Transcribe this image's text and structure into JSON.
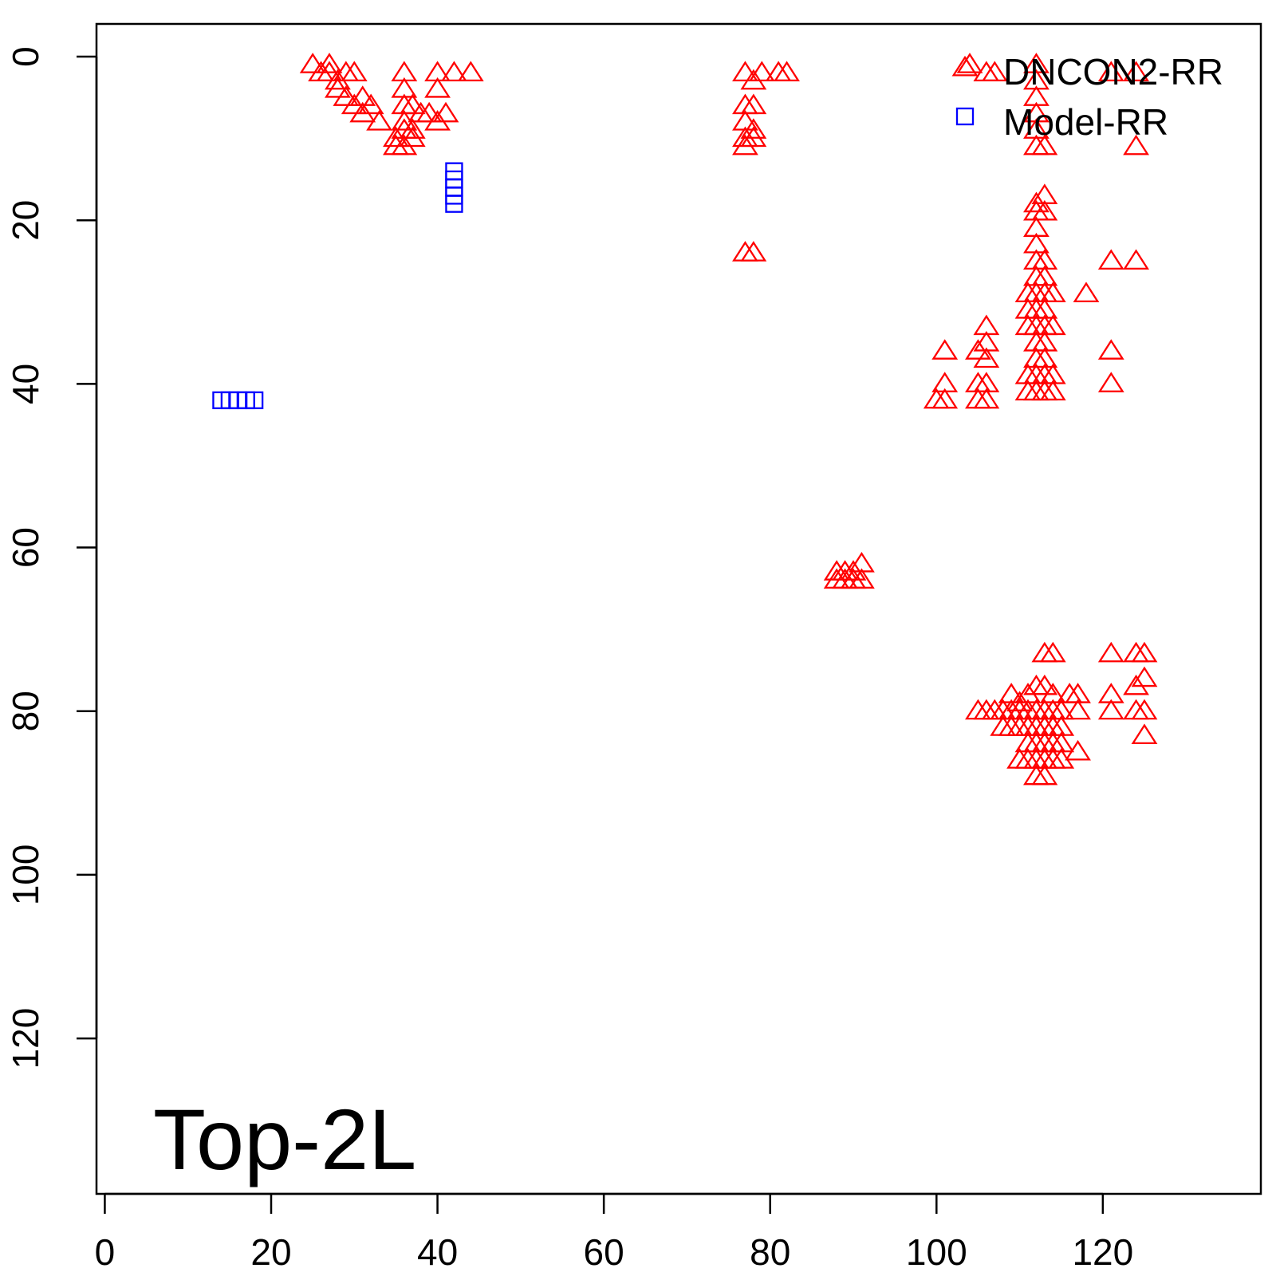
{
  "chart_data": {
    "type": "scatter",
    "title": "",
    "xlabel": "",
    "ylabel": "",
    "panel_label": "Top-2L",
    "xlim": [
      -1,
      139
    ],
    "ylim": [
      139,
      -4
    ],
    "y_reversed": true,
    "x_ticks": [
      "0",
      "20",
      "40",
      "60",
      "80",
      "100",
      "120"
    ],
    "y_ticks": [
      "0",
      "20",
      "40",
      "60",
      "80",
      "100",
      "120"
    ],
    "grid": false,
    "legend_position": "top-right",
    "legend": [
      "DNCON2-RR",
      "Model-RR"
    ],
    "series": [
      {
        "name": "DNCON2-RR",
        "color": "#ff0000",
        "marker": "triangle",
        "points": [
          [
            25,
            1
          ],
          [
            26,
            2
          ],
          [
            27,
            1
          ],
          [
            27,
            2
          ],
          [
            28,
            3
          ],
          [
            29,
            2
          ],
          [
            30,
            2
          ],
          [
            28,
            4
          ],
          [
            29,
            5
          ],
          [
            30,
            6
          ],
          [
            31,
            5
          ],
          [
            31,
            7
          ],
          [
            32,
            6
          ],
          [
            33,
            8
          ],
          [
            36,
            2
          ],
          [
            36,
            4
          ],
          [
            36,
            6
          ],
          [
            36,
            8
          ],
          [
            36,
            9
          ],
          [
            35,
            10
          ],
          [
            37,
            10
          ],
          [
            35,
            11
          ],
          [
            36,
            11
          ],
          [
            37,
            9
          ],
          [
            37,
            6
          ],
          [
            38,
            7
          ],
          [
            39,
            7
          ],
          [
            40,
            8
          ],
          [
            41,
            7
          ],
          [
            40,
            4
          ],
          [
            40,
            2
          ],
          [
            42,
            2
          ],
          [
            44,
            2
          ],
          [
            77,
            2
          ],
          [
            79,
            2
          ],
          [
            81,
            2
          ],
          [
            82,
            2
          ],
          [
            78,
            3
          ],
          [
            77,
            6
          ],
          [
            78,
            6
          ],
          [
            77,
            8
          ],
          [
            78,
            9
          ],
          [
            77,
            10
          ],
          [
            78,
            10
          ],
          [
            77,
            11
          ],
          [
            77,
            24
          ],
          [
            78,
            24
          ],
          [
            104,
            1
          ],
          [
            106,
            2
          ],
          [
            107,
            2
          ],
          [
            112,
            1
          ],
          [
            112,
            3
          ],
          [
            112,
            5
          ],
          [
            112,
            7
          ],
          [
            112,
            9
          ],
          [
            112,
            11
          ],
          [
            113,
            11
          ],
          [
            124,
            11
          ],
          [
            121,
            2
          ],
          [
            124,
            2
          ],
          [
            112,
            18
          ],
          [
            113,
            17
          ],
          [
            112,
            19
          ],
          [
            113,
            19
          ],
          [
            112,
            21
          ],
          [
            112,
            23
          ],
          [
            112,
            25
          ],
          [
            113,
            25
          ],
          [
            112,
            27
          ],
          [
            113,
            27
          ],
          [
            111,
            29
          ],
          [
            112,
            29
          ],
          [
            113,
            29
          ],
          [
            114,
            29
          ],
          [
            111,
            31
          ],
          [
            112,
            31
          ],
          [
            113,
            31
          ],
          [
            111,
            33
          ],
          [
            112,
            33
          ],
          [
            113,
            33
          ],
          [
            114,
            33
          ],
          [
            112,
            35
          ],
          [
            113,
            35
          ],
          [
            112,
            37
          ],
          [
            113,
            37
          ],
          [
            111,
            39
          ],
          [
            112,
            39
          ],
          [
            113,
            39
          ],
          [
            114,
            39
          ],
          [
            111,
            41
          ],
          [
            112,
            41
          ],
          [
            113,
            41
          ],
          [
            114,
            41
          ],
          [
            121,
            25
          ],
          [
            124,
            25
          ],
          [
            118,
            29
          ],
          [
            121,
            36
          ],
          [
            121,
            40
          ],
          [
            101,
            36
          ],
          [
            105,
            36
          ],
          [
            106,
            33
          ],
          [
            106,
            35
          ],
          [
            106,
            37
          ],
          [
            100,
            42
          ],
          [
            101,
            40
          ],
          [
            101,
            42
          ],
          [
            105,
            40
          ],
          [
            105,
            42
          ],
          [
            106,
            40
          ],
          [
            106,
            42
          ],
          [
            88,
            63
          ],
          [
            89,
            63
          ],
          [
            90,
            63
          ],
          [
            91,
            62
          ],
          [
            88,
            64
          ],
          [
            89,
            64
          ],
          [
            90,
            64
          ],
          [
            91,
            64
          ],
          [
            113,
            73
          ],
          [
            114,
            73
          ],
          [
            121,
            73
          ],
          [
            124,
            73
          ],
          [
            125,
            73
          ],
          [
            109,
            78
          ],
          [
            110,
            79
          ],
          [
            111,
            78
          ],
          [
            112,
            77
          ],
          [
            113,
            77
          ],
          [
            114,
            78
          ],
          [
            116,
            78
          ],
          [
            117,
            78
          ],
          [
            121,
            78
          ],
          [
            124,
            77
          ],
          [
            125,
            76
          ],
          [
            105,
            80
          ],
          [
            106,
            80
          ],
          [
            107,
            80
          ],
          [
            108,
            80
          ],
          [
            109,
            80
          ],
          [
            110,
            80
          ],
          [
            111,
            80
          ],
          [
            112,
            80
          ],
          [
            113,
            80
          ],
          [
            114,
            80
          ],
          [
            115,
            80
          ],
          [
            117,
            80
          ],
          [
            121,
            80
          ],
          [
            124,
            80
          ],
          [
            125,
            80
          ],
          [
            108,
            82
          ],
          [
            109,
            82
          ],
          [
            110,
            82
          ],
          [
            111,
            82
          ],
          [
            112,
            82
          ],
          [
            113,
            82
          ],
          [
            114,
            82
          ],
          [
            115,
            82
          ],
          [
            111,
            84
          ],
          [
            112,
            84
          ],
          [
            113,
            84
          ],
          [
            114,
            84
          ],
          [
            115,
            84
          ],
          [
            117,
            85
          ],
          [
            110,
            86
          ],
          [
            111,
            86
          ],
          [
            112,
            86
          ],
          [
            113,
            86
          ],
          [
            114,
            86
          ],
          [
            115,
            86
          ],
          [
            112,
            88
          ],
          [
            113,
            88
          ],
          [
            125,
            83
          ]
        ]
      },
      {
        "name": "Model-RR",
        "color": "#0000ff",
        "marker": "square",
        "points": [
          [
            14,
            42
          ],
          [
            15,
            42
          ],
          [
            16,
            42
          ],
          [
            17,
            42
          ],
          [
            18,
            42
          ],
          [
            42,
            14
          ],
          [
            42,
            15
          ],
          [
            42,
            16
          ],
          [
            42,
            17
          ],
          [
            42,
            18
          ]
        ]
      }
    ]
  }
}
